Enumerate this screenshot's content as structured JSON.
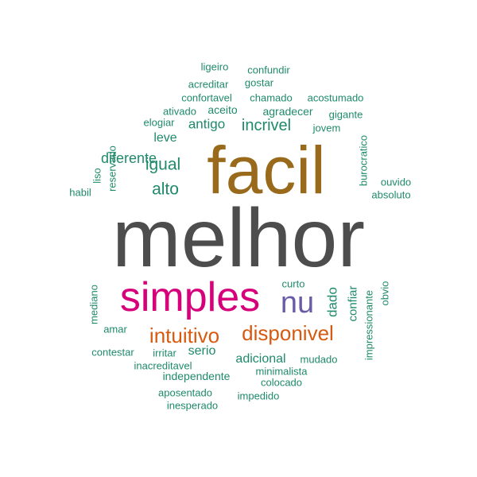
{
  "colors": {
    "gray": "#4d4d4d",
    "brown": "#9a6a1c",
    "magenta": "#d6007a",
    "purple": "#6a5ba8",
    "orange": "#d65a10",
    "green": "#1f8a6a"
  },
  "words": {
    "melhor": "melhor",
    "facil": "facil",
    "simples": "simples",
    "nu": "nu",
    "intuitivo": "intuitivo",
    "disponivel": "disponivel",
    "incrivel": "incrivel",
    "antigo": "antigo",
    "igual": "igual",
    "alto": "alto",
    "diferente": "diferente",
    "leve": "leve",
    "adicional": "adicional",
    "serio": "serio",
    "ligeiro": "ligeiro",
    "confundir": "confundir",
    "acreditar": "acreditar",
    "gostar": "gostar",
    "confortavel": "confortavel",
    "chamado": "chamado",
    "acostumado": "acostumado",
    "ativado": "ativado",
    "aceito": "aceito",
    "agradecer": "agradecer",
    "gigante": "gigante",
    "elogiar": "elogiar",
    "jovem": "jovem",
    "burocratico": "burocratico",
    "reservado": "reservado",
    "liso": "liso",
    "habil": "habil",
    "ouvido": "ouvido",
    "absoluto": "absoluto",
    "curto": "curto",
    "dado": "dado",
    "confiar": "confiar",
    "impressionante": "impressionante",
    "obvio": "obvio",
    "mediano": "mediano",
    "amar": "amar",
    "contestar": "contestar",
    "irritar": "irritar",
    "inacreditavel": "inacreditavel",
    "mudado": "mudado",
    "independente": "independente",
    "minimalista": "minimalista",
    "colocado": "colocado",
    "aposentado": "aposentado",
    "impedido": "impedido",
    "inesperado": "inesperado"
  }
}
